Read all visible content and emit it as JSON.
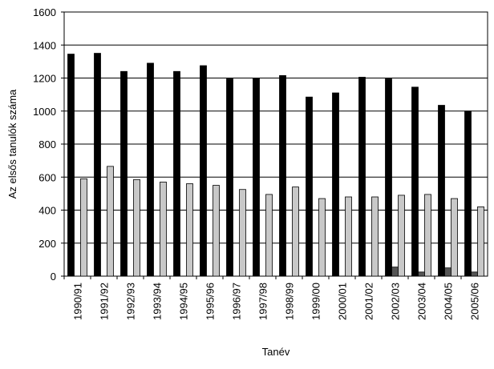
{
  "chart_data": {
    "type": "bar",
    "categories": [
      "1990/91",
      "1991/92",
      "1992/93",
      "1993/94",
      "1994/95",
      "1995/96",
      "1996/97",
      "1997/98",
      "1998/99",
      "1999/00",
      "2000/01",
      "2001/02",
      "2002/03",
      "2003/04",
      "2004/05",
      "2005/06"
    ],
    "series": [
      {
        "color": "#000000",
        "values": [
          1345,
          1350,
          1240,
          1290,
          1240,
          1275,
          1195,
          1200,
          1215,
          1085,
          1110,
          1205,
          1195,
          1145,
          1035,
          1000
        ]
      },
      {
        "color": "#555555",
        "values": [
          0,
          0,
          0,
          0,
          0,
          0,
          0,
          0,
          0,
          0,
          0,
          0,
          55,
          25,
          50,
          25
        ]
      },
      {
        "color": "#c8c8c8",
        "values": [
          590,
          665,
          585,
          570,
          560,
          550,
          525,
          495,
          540,
          470,
          480,
          480,
          490,
          495,
          470,
          420
        ]
      }
    ],
    "ylim": [
      0,
      1600
    ],
    "yticks": [
      0,
      200,
      400,
      600,
      800,
      1000,
      1200,
      1400,
      1600
    ],
    "xlabel": "Tanév",
    "ylabel": "Az elsős tanulók száma",
    "grid": true
  }
}
